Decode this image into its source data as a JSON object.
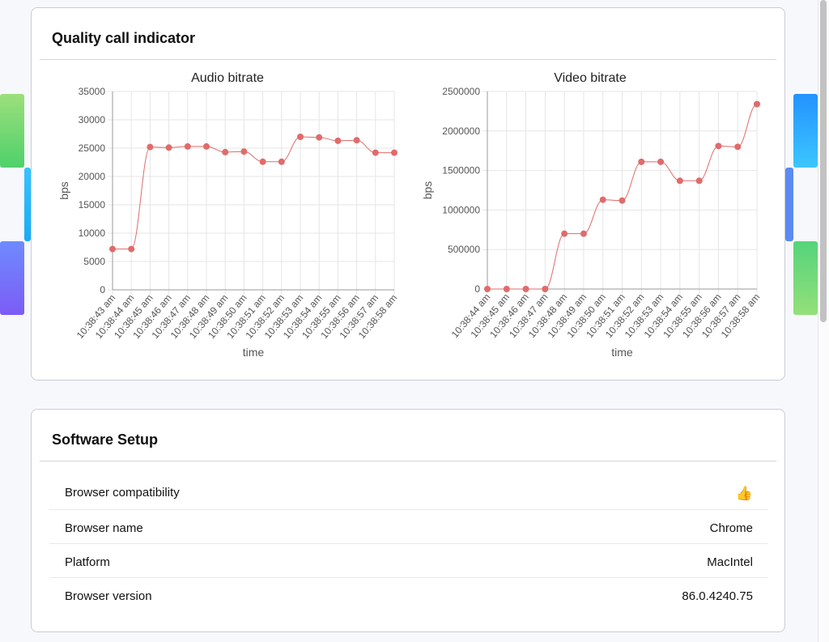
{
  "quality": {
    "title": "Quality call indicator"
  },
  "software": {
    "title": "Software Setup",
    "rows": [
      {
        "label": "Browser compatibility",
        "value": "👍"
      },
      {
        "label": "Browser name",
        "value": "Chrome"
      },
      {
        "label": "Platform",
        "value": "MacIntel"
      },
      {
        "label": "Browser version",
        "value": "86.0.4240.75"
      }
    ]
  },
  "chart_data": [
    {
      "type": "line",
      "title": "Audio bitrate",
      "xlabel": "time",
      "ylabel": "bps",
      "ylim": [
        0,
        35000
      ],
      "yticks": [
        "0",
        "5000",
        "10000",
        "15000",
        "20000",
        "25000",
        "30000",
        "35000"
      ],
      "categories": [
        "10:38:43 am",
        "10:38:44 am",
        "10:38:45 am",
        "10:38:46 am",
        "10:38:47 am",
        "10:38:48 am",
        "10:38:49 am",
        "10:38:50 am",
        "10:38:51 am",
        "10:38:52 am",
        "10:38:53 am",
        "10:38:54 am",
        "10:38:55 am",
        "10:38:56 am",
        "10:38:57 am",
        "10:38:58 am"
      ],
      "values": [
        7200,
        7200,
        25200,
        25100,
        25300,
        25300,
        24300,
        24400,
        22600,
        22600,
        27000,
        26900,
        26300,
        26400,
        24200,
        24200
      ],
      "color": "#e06b6b"
    },
    {
      "type": "line",
      "title": "Video bitrate",
      "xlabel": "time",
      "ylabel": "bps",
      "ylim": [
        0,
        2500000
      ],
      "yticks": [
        "0",
        "500000",
        "1000000",
        "1500000",
        "2000000",
        "2500000"
      ],
      "categories": [
        "10:38:44 am",
        "10:38:45 am",
        "10:38:46 am",
        "10:38:47 am",
        "10:38:48 am",
        "10:38:49 am",
        "10:38:50 am",
        "10:38:51 am",
        "10:38:52 am",
        "10:38:53 am",
        "10:38:54 am",
        "10:38:55 am",
        "10:38:56 am",
        "10:38:57 am",
        "10:38:58 am"
      ],
      "values": [
        0,
        0,
        0,
        0,
        700000,
        700000,
        1130000,
        1120000,
        1610000,
        1610000,
        1370000,
        1370000,
        1810000,
        1800000,
        2340000
      ],
      "color": "#e06b6b"
    }
  ]
}
